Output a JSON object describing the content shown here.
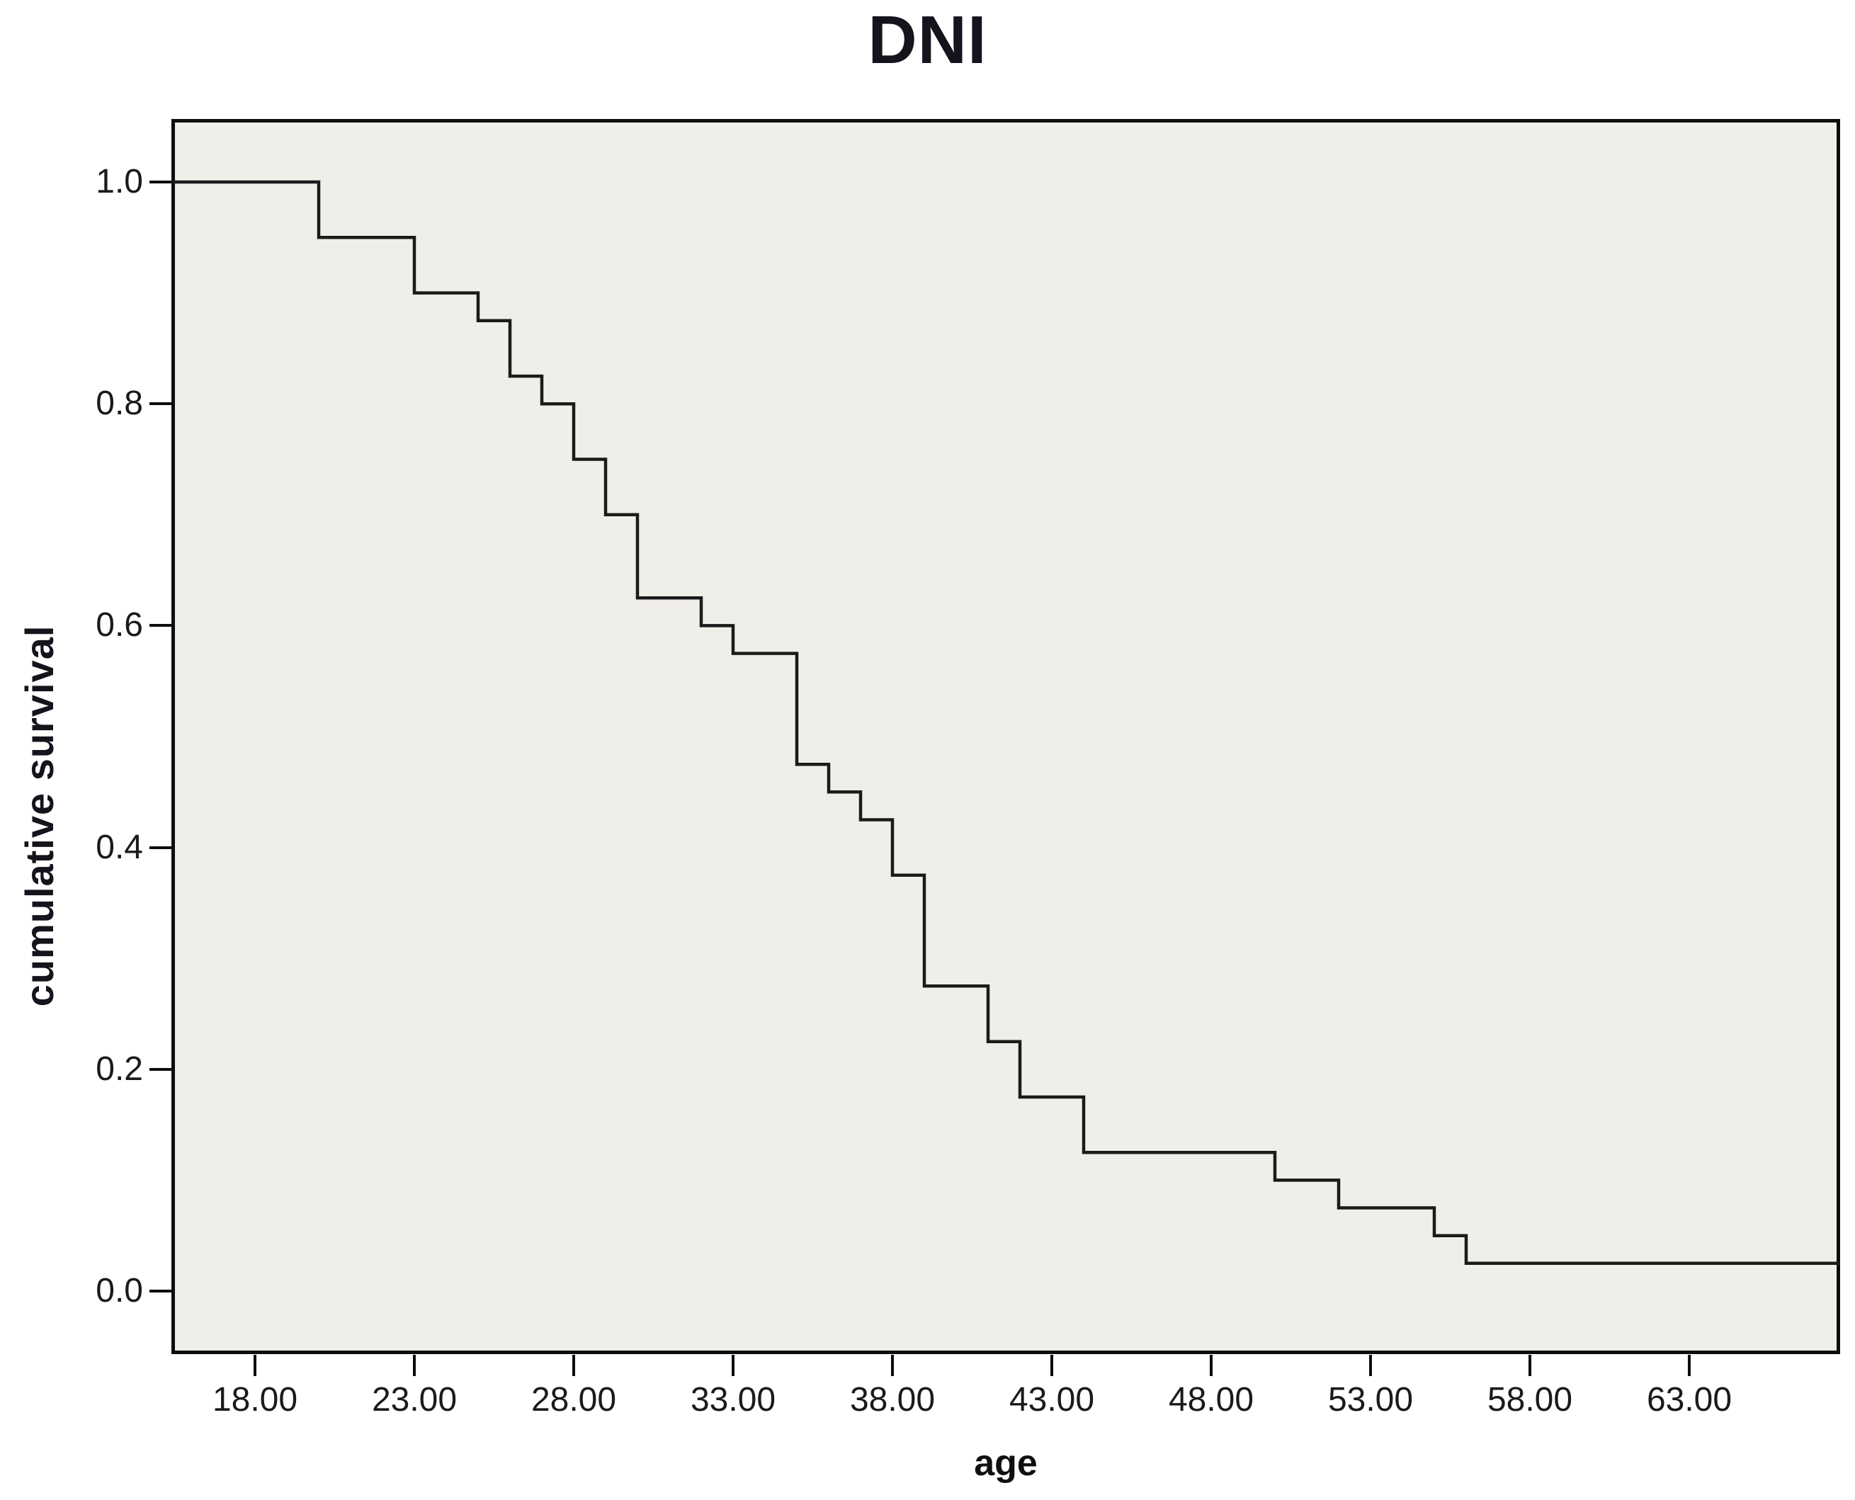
{
  "title": {
    "text": "DNI"
  },
  "x_axis": {
    "label": "age",
    "ticks": [
      {
        "value": 18,
        "label": "18.00"
      },
      {
        "value": 23,
        "label": "23.00"
      },
      {
        "value": 28,
        "label": "28.00"
      },
      {
        "value": 33,
        "label": "33.00"
      },
      {
        "value": 38,
        "label": "38.00"
      },
      {
        "value": 43,
        "label": "43.00"
      },
      {
        "value": 48,
        "label": "48.00"
      },
      {
        "value": 53,
        "label": "53.00"
      },
      {
        "value": 58,
        "label": "58.00"
      },
      {
        "value": 63,
        "label": "63.00"
      }
    ]
  },
  "y_axis": {
    "label": "cumulative survival",
    "ticks": [
      {
        "value": 1.0,
        "label": "1.0"
      },
      {
        "value": 0.8,
        "label": "0.8"
      },
      {
        "value": 0.6,
        "label": "0.6"
      },
      {
        "value": 0.4,
        "label": "0.4"
      },
      {
        "value": 0.2,
        "label": "0.2"
      },
      {
        "value": 0.0,
        "label": "0.0"
      }
    ]
  },
  "colors": {
    "curve": "#1a1a1a",
    "plot_background": "#f0eee9",
    "plot_border": "#0d0d0d",
    "page_background": "#ffffff",
    "tick_text": "#1a1a1a",
    "title_text": "#14141c"
  },
  "chart_data": {
    "type": "line",
    "subtype": "kaplan-meier-step",
    "title": "DNI",
    "xlabel": "age",
    "ylabel": "cumulative survival",
    "xlim": [
      15.3,
      67.4
    ],
    "ylim": [
      -0.057,
      1.057
    ],
    "x_ticks": [
      18,
      23,
      28,
      33,
      38,
      43,
      48,
      53,
      58,
      63
    ],
    "y_ticks": [
      0.0,
      0.2,
      0.4,
      0.6,
      0.8,
      1.0
    ],
    "grid": false,
    "legend_position": "none",
    "series": [
      {
        "name": "cumulative survival",
        "color": "#1a1a1a",
        "step_points": [
          [
            15.3,
            1.0
          ],
          [
            20,
            0.95
          ],
          [
            23,
            0.9
          ],
          [
            25,
            0.875
          ],
          [
            26,
            0.825
          ],
          [
            27,
            0.8
          ],
          [
            28,
            0.75
          ],
          [
            29,
            0.7
          ],
          [
            30,
            0.625
          ],
          [
            32,
            0.6
          ],
          [
            33,
            0.575
          ],
          [
            35,
            0.475
          ],
          [
            36,
            0.45
          ],
          [
            37,
            0.425
          ],
          [
            38,
            0.375
          ],
          [
            39,
            0.275
          ],
          [
            41,
            0.225
          ],
          [
            42,
            0.175
          ],
          [
            44,
            0.125
          ],
          [
            50,
            0.1
          ],
          [
            52,
            0.075
          ],
          [
            55,
            0.05
          ],
          [
            56,
            0.025
          ],
          [
            67.4,
            0.025
          ]
        ]
      }
    ]
  }
}
